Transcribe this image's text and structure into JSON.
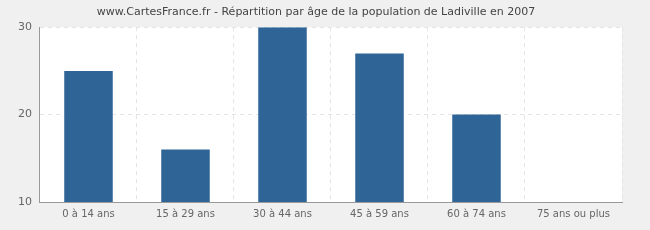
{
  "chart_data": {
    "type": "bar",
    "title": "www.CartesFrance.fr - Répartition par âge de la population de Ladiville en 2007",
    "categories": [
      "0 à 14 ans",
      "15 à 29 ans",
      "30 à 44 ans",
      "45 à 59 ans",
      "60 à 74 ans",
      "75 ans ou plus"
    ],
    "values": [
      25,
      16,
      30,
      27,
      20,
      10
    ],
    "color": "#2e6496",
    "ylim": [
      10,
      30
    ],
    "yticks": [
      10,
      20,
      30
    ],
    "grid": true
  }
}
